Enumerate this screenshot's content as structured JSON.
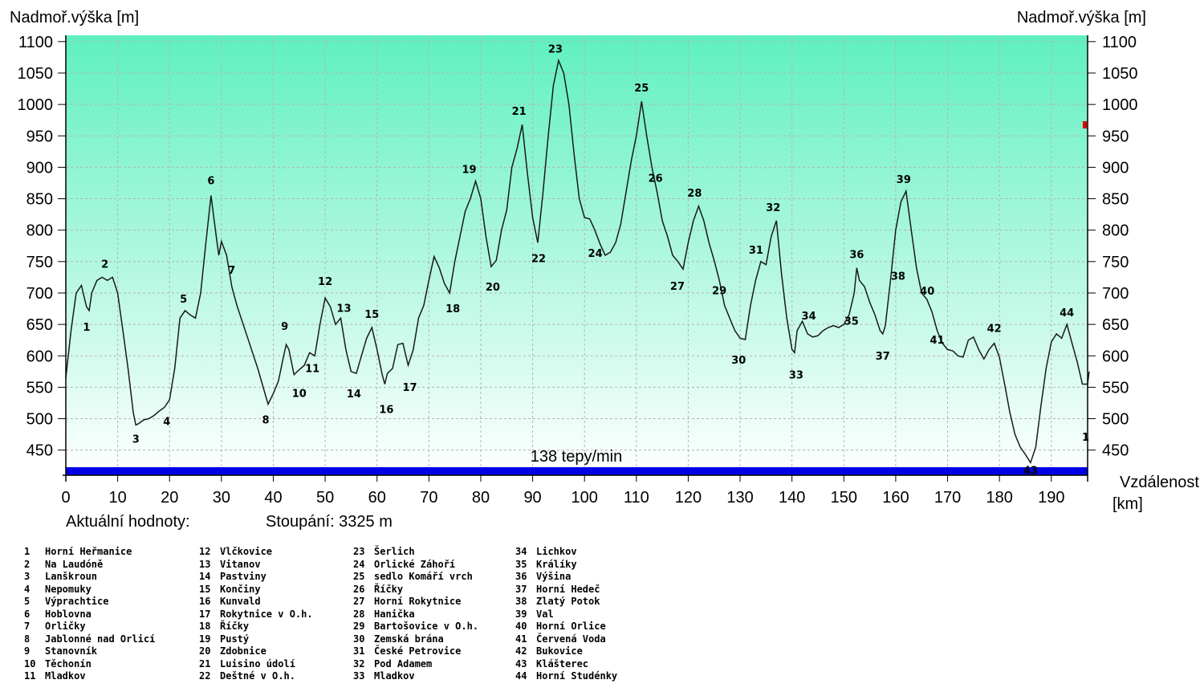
{
  "chart_data": {
    "type": "area",
    "ylabel_left": "Nadmoř.výška [m]",
    "ylabel_right": "Nadmoř.výška [m]",
    "xlabel": "Vzdálenost",
    "xunit": "[km]",
    "xlim": [
      0,
      197
    ],
    "ylim": [
      410,
      1110
    ],
    "x_ticks": [
      0,
      10,
      20,
      30,
      40,
      50,
      60,
      70,
      80,
      90,
      100,
      110,
      120,
      130,
      140,
      150,
      160,
      170,
      180,
      190
    ],
    "y_ticks": [
      450,
      500,
      550,
      600,
      650,
      700,
      750,
      800,
      850,
      900,
      950,
      1000,
      1050,
      1100
    ],
    "grid": true,
    "colors": {
      "plot_top": "#5ff0c0",
      "plot_bottom": "#ffffff",
      "line": "#1a1a1a",
      "heart_bar": "#0000e6",
      "grid": "#b4b4b4"
    },
    "heart_rate_label": "138 tepy/min",
    "info_label": "Aktuální hodnoty:",
    "climb_label": "Stoupání: 3325 m",
    "end_marker_label": "1",
    "profile": [
      [
        0,
        565
      ],
      [
        1,
        640
      ],
      [
        2,
        700
      ],
      [
        3,
        712
      ],
      [
        4,
        678
      ],
      [
        4.5,
        672
      ],
      [
        5,
        700
      ],
      [
        6,
        720
      ],
      [
        7,
        725
      ],
      [
        8,
        720
      ],
      [
        9,
        725
      ],
      [
        10,
        700
      ],
      [
        11,
        640
      ],
      [
        12,
        580
      ],
      [
        13,
        510
      ],
      [
        13.5,
        490
      ],
      [
        14,
        492
      ],
      [
        15,
        498
      ],
      [
        16,
        500
      ],
      [
        17,
        505
      ],
      [
        18,
        512
      ],
      [
        19,
        518
      ],
      [
        20,
        530
      ],
      [
        21,
        580
      ],
      [
        22,
        660
      ],
      [
        23,
        672
      ],
      [
        24,
        665
      ],
      [
        25,
        660
      ],
      [
        26,
        700
      ],
      [
        27,
        780
      ],
      [
        28,
        855
      ],
      [
        29,
        790
      ],
      [
        29.5,
        760
      ],
      [
        30,
        782
      ],
      [
        31,
        760
      ],
      [
        32,
        710
      ],
      [
        33,
        680
      ],
      [
        35,
        630
      ],
      [
        37,
        580
      ],
      [
        39,
        523
      ],
      [
        40,
        540
      ],
      [
        41,
        560
      ],
      [
        42,
        600
      ],
      [
        42.5,
        618
      ],
      [
        43,
        610
      ],
      [
        44,
        570
      ],
      [
        45,
        578
      ],
      [
        46,
        585
      ],
      [
        47,
        605
      ],
      [
        48,
        600
      ],
      [
        49,
        650
      ],
      [
        50,
        692
      ],
      [
        51,
        678
      ],
      [
        52,
        650
      ],
      [
        53,
        660
      ],
      [
        54,
        610
      ],
      [
        55,
        575
      ],
      [
        56,
        572
      ],
      [
        57,
        600
      ],
      [
        58,
        628
      ],
      [
        59,
        645
      ],
      [
        60,
        610
      ],
      [
        61,
        570
      ],
      [
        61.5,
        555
      ],
      [
        62,
        572
      ],
      [
        63,
        580
      ],
      [
        64,
        618
      ],
      [
        65,
        620
      ],
      [
        66,
        585
      ],
      [
        67,
        610
      ],
      [
        68,
        660
      ],
      [
        69,
        680
      ],
      [
        70,
        720
      ],
      [
        71,
        758
      ],
      [
        72,
        740
      ],
      [
        73,
        715
      ],
      [
        74,
        700
      ],
      [
        75,
        750
      ],
      [
        76,
        790
      ],
      [
        77,
        830
      ],
      [
        78,
        850
      ],
      [
        79,
        878
      ],
      [
        80,
        850
      ],
      [
        81,
        790
      ],
      [
        82,
        742
      ],
      [
        83,
        752
      ],
      [
        84,
        800
      ],
      [
        85,
        832
      ],
      [
        86,
        900
      ],
      [
        87,
        930
      ],
      [
        88,
        968
      ],
      [
        89,
        890
      ],
      [
        90,
        820
      ],
      [
        91,
        780
      ],
      [
        92,
        860
      ],
      [
        93,
        950
      ],
      [
        94,
        1030
      ],
      [
        95,
        1070
      ],
      [
        96,
        1050
      ],
      [
        97,
        1000
      ],
      [
        98,
        920
      ],
      [
        99,
        850
      ],
      [
        100,
        820
      ],
      [
        101,
        818
      ],
      [
        102,
        800
      ],
      [
        103,
        778
      ],
      [
        104,
        760
      ],
      [
        105,
        765
      ],
      [
        106,
        780
      ],
      [
        107,
        810
      ],
      [
        108,
        860
      ],
      [
        109,
        910
      ],
      [
        110,
        950
      ],
      [
        111,
        1005
      ],
      [
        112,
        950
      ],
      [
        113,
        900
      ],
      [
        114,
        860
      ],
      [
        115,
        815
      ],
      [
        116,
        790
      ],
      [
        117,
        760
      ],
      [
        118,
        750
      ],
      [
        119,
        738
      ],
      [
        120,
        780
      ],
      [
        121,
        815
      ],
      [
        122,
        838
      ],
      [
        123,
        815
      ],
      [
        124,
        780
      ],
      [
        125,
        752
      ],
      [
        126,
        720
      ],
      [
        127,
        680
      ],
      [
        128,
        660
      ],
      [
        129,
        640
      ],
      [
        130,
        628
      ],
      [
        131,
        626
      ],
      [
        132,
        680
      ],
      [
        133,
        720
      ],
      [
        134,
        750
      ],
      [
        135,
        745
      ],
      [
        136,
        790
      ],
      [
        137,
        815
      ],
      [
        138,
        730
      ],
      [
        139,
        660
      ],
      [
        140,
        610
      ],
      [
        140.5,
        605
      ],
      [
        141,
        640
      ],
      [
        142,
        655
      ],
      [
        143,
        635
      ],
      [
        144,
        630
      ],
      [
        145,
        632
      ],
      [
        146,
        640
      ],
      [
        147,
        645
      ],
      [
        148,
        648
      ],
      [
        149,
        645
      ],
      [
        150,
        650
      ],
      [
        151,
        665
      ],
      [
        152,
        700
      ],
      [
        152.5,
        740
      ],
      [
        153,
        720
      ],
      [
        154,
        710
      ],
      [
        155,
        685
      ],
      [
        156,
        665
      ],
      [
        157,
        640
      ],
      [
        157.5,
        635
      ],
      [
        158,
        648
      ],
      [
        159,
        720
      ],
      [
        160,
        800
      ],
      [
        161,
        845
      ],
      [
        162,
        862
      ],
      [
        163,
        800
      ],
      [
        164,
        740
      ],
      [
        165,
        700
      ],
      [
        166,
        690
      ],
      [
        167,
        670
      ],
      [
        168,
        640
      ],
      [
        169,
        620
      ],
      [
        170,
        610
      ],
      [
        171,
        608
      ],
      [
        172,
        600
      ],
      [
        173,
        598
      ],
      [
        174,
        625
      ],
      [
        175,
        630
      ],
      [
        176,
        610
      ],
      [
        177,
        595
      ],
      [
        178,
        610
      ],
      [
        179,
        620
      ],
      [
        180,
        598
      ],
      [
        181,
        555
      ],
      [
        182,
        510
      ],
      [
        183,
        475
      ],
      [
        184,
        455
      ],
      [
        185,
        443
      ],
      [
        186,
        430
      ],
      [
        187,
        455
      ],
      [
        188,
        520
      ],
      [
        189,
        580
      ],
      [
        190,
        622
      ],
      [
        191,
        635
      ],
      [
        192,
        628
      ],
      [
        193,
        650
      ],
      [
        194,
        620
      ],
      [
        195,
        590
      ],
      [
        196,
        555
      ],
      [
        197,
        555
      ],
      [
        197.3,
        575
      ]
    ],
    "waypoints": [
      {
        "id": "1",
        "x": 4,
        "y": 678,
        "name": "Horní Heřmanice",
        "dx": 0,
        "dy": 30
      },
      {
        "id": "2",
        "x": 8,
        "y": 725,
        "name": "Na Laudóně",
        "dx": -3,
        "dy": -12
      },
      {
        "id": "3",
        "x": 13.5,
        "y": 490,
        "name": "Lanškroun",
        "dx": 0,
        "dy": 22
      },
      {
        "id": "4",
        "x": 19,
        "y": 518,
        "name": "Nepomuky",
        "dx": 3,
        "dy": 22
      },
      {
        "id": "5",
        "x": 23,
        "y": 672,
        "name": "Výprachtice",
        "dx": -2,
        "dy": -10
      },
      {
        "id": "6",
        "x": 28,
        "y": 855,
        "name": "Hoblovna",
        "dx": 0,
        "dy": -14
      },
      {
        "id": "7",
        "x": 32,
        "y": 710,
        "name": "Orličky",
        "dx": 0,
        "dy": -16
      },
      {
        "id": "8",
        "x": 39,
        "y": 523,
        "name": "Jablonné nad Orlicí",
        "dx": -3,
        "dy": 24
      },
      {
        "id": "9",
        "x": 42.5,
        "y": 618,
        "name": "Stanovník",
        "dx": -2,
        "dy": -18
      },
      {
        "id": "10",
        "x": 45,
        "y": 578,
        "name": "Těchonín",
        "dx": 0,
        "dy": 34
      },
      {
        "id": "11",
        "x": 48,
        "y": 600,
        "name": "Mladkov",
        "dx": -3,
        "dy": 20
      },
      {
        "id": "12",
        "x": 50,
        "y": 692,
        "name": "Vlčkovice",
        "dx": 0,
        "dy": -16
      },
      {
        "id": "13",
        "x": 53,
        "y": 660,
        "name": "Vitanov",
        "dx": 4,
        "dy": -8
      },
      {
        "id": "14",
        "x": 56,
        "y": 572,
        "name": "Pastviny",
        "dx": -3,
        "dy": 30
      },
      {
        "id": "15",
        "x": 59,
        "y": 645,
        "name": "Končiny",
        "dx": 0,
        "dy": -12
      },
      {
        "id": "16",
        "x": 61.5,
        "y": 555,
        "name": "Kunvald",
        "dx": 2,
        "dy": 36
      },
      {
        "id": "17",
        "x": 66,
        "y": 585,
        "name": "Rokytnice v O.h.",
        "dx": 2,
        "dy": 32
      },
      {
        "id": "18",
        "x": 74,
        "y": 700,
        "name": "Říčky",
        "dx": 4,
        "dy": 24
      },
      {
        "id": "19",
        "x": 79,
        "y": 878,
        "name": "Pustý",
        "dx": -8,
        "dy": -10
      },
      {
        "id": "20",
        "x": 82,
        "y": 742,
        "name": "Zdobnice",
        "dx": 2,
        "dy": 30
      },
      {
        "id": "21",
        "x": 88,
        "y": 968,
        "name": "Luisino údolí",
        "dx": -4,
        "dy": -12
      },
      {
        "id": "22",
        "x": 91,
        "y": 780,
        "name": "Deštné v O.h.",
        "dx": 1,
        "dy": 24
      },
      {
        "id": "23",
        "x": 95,
        "y": 1070,
        "name": "Šerlich",
        "dx": -4,
        "dy": -10
      },
      {
        "id": "24",
        "x": 103,
        "y": 778,
        "name": "Orlické Záhoří",
        "dx": -6,
        "dy": 16
      },
      {
        "id": "25",
        "x": 111,
        "y": 1005,
        "name": "sedlo Komáří vrch",
        "dx": 0,
        "dy": -12
      },
      {
        "id": "26",
        "x": 114,
        "y": 860,
        "name": "Říčky",
        "dx": -2,
        "dy": -13
      },
      {
        "id": "27",
        "x": 119,
        "y": 738,
        "name": "Horní Rokytnice",
        "dx": -7,
        "dy": 26
      },
      {
        "id": "28",
        "x": 122,
        "y": 838,
        "name": "Hanička",
        "dx": -5,
        "dy": -12
      },
      {
        "id": "29",
        "x": 126,
        "y": 720,
        "name": "Bartošovice v O.h.",
        "dx": 0,
        "dy": 17
      },
      {
        "id": "30",
        "x": 130.5,
        "y": 626,
        "name": "Zemská brána",
        "dx": -5,
        "dy": 30
      },
      {
        "id": "31",
        "x": 134,
        "y": 750,
        "name": "České Petrovice",
        "dx": -6,
        "dy": -10
      },
      {
        "id": "32",
        "x": 137,
        "y": 815,
        "name": "Pod Adamem",
        "dx": -4,
        "dy": -12
      },
      {
        "id": "33",
        "x": 140.5,
        "y": 605,
        "name": "Mladkov",
        "dx": 2,
        "dy": 32
      },
      {
        "id": "34",
        "x": 142,
        "y": 655,
        "name": "Lichkov",
        "dx": 8,
        "dy": -2
      },
      {
        "id": "35",
        "x": 151,
        "y": 665,
        "name": "Králíky",
        "dx": 3,
        "dy": 12
      },
      {
        "id": "36",
        "x": 152.5,
        "y": 740,
        "name": "Výšina",
        "dx": 0,
        "dy": -12
      },
      {
        "id": "37",
        "x": 157.5,
        "y": 635,
        "name": "Horní Hedeč",
        "dx": 0,
        "dy": 32
      },
      {
        "id": "38",
        "x": 160,
        "y": 800,
        "name": "Zlatý Potok",
        "dx": 3,
        "dy": 62
      },
      {
        "id": "39",
        "x": 162,
        "y": 862,
        "name": "Val",
        "dx": -3,
        "dy": -10
      },
      {
        "id": "40",
        "x": 165,
        "y": 700,
        "name": "Horní Orlice",
        "dx": 7,
        "dy": 2
      },
      {
        "id": "41",
        "x": 168,
        "y": 640,
        "name": "Červená Voda",
        "dx": 0,
        "dy": 16
      },
      {
        "id": "42",
        "x": 179,
        "y": 620,
        "name": "Bukovice",
        "dx": 0,
        "dy": -14
      },
      {
        "id": "43",
        "x": 186,
        "y": 430,
        "name": "Klášterec",
        "dx": 0,
        "dy": 14
      },
      {
        "id": "44",
        "x": 193,
        "y": 650,
        "name": "Horní Studénky",
        "dx": 0,
        "dy": -10
      }
    ]
  }
}
